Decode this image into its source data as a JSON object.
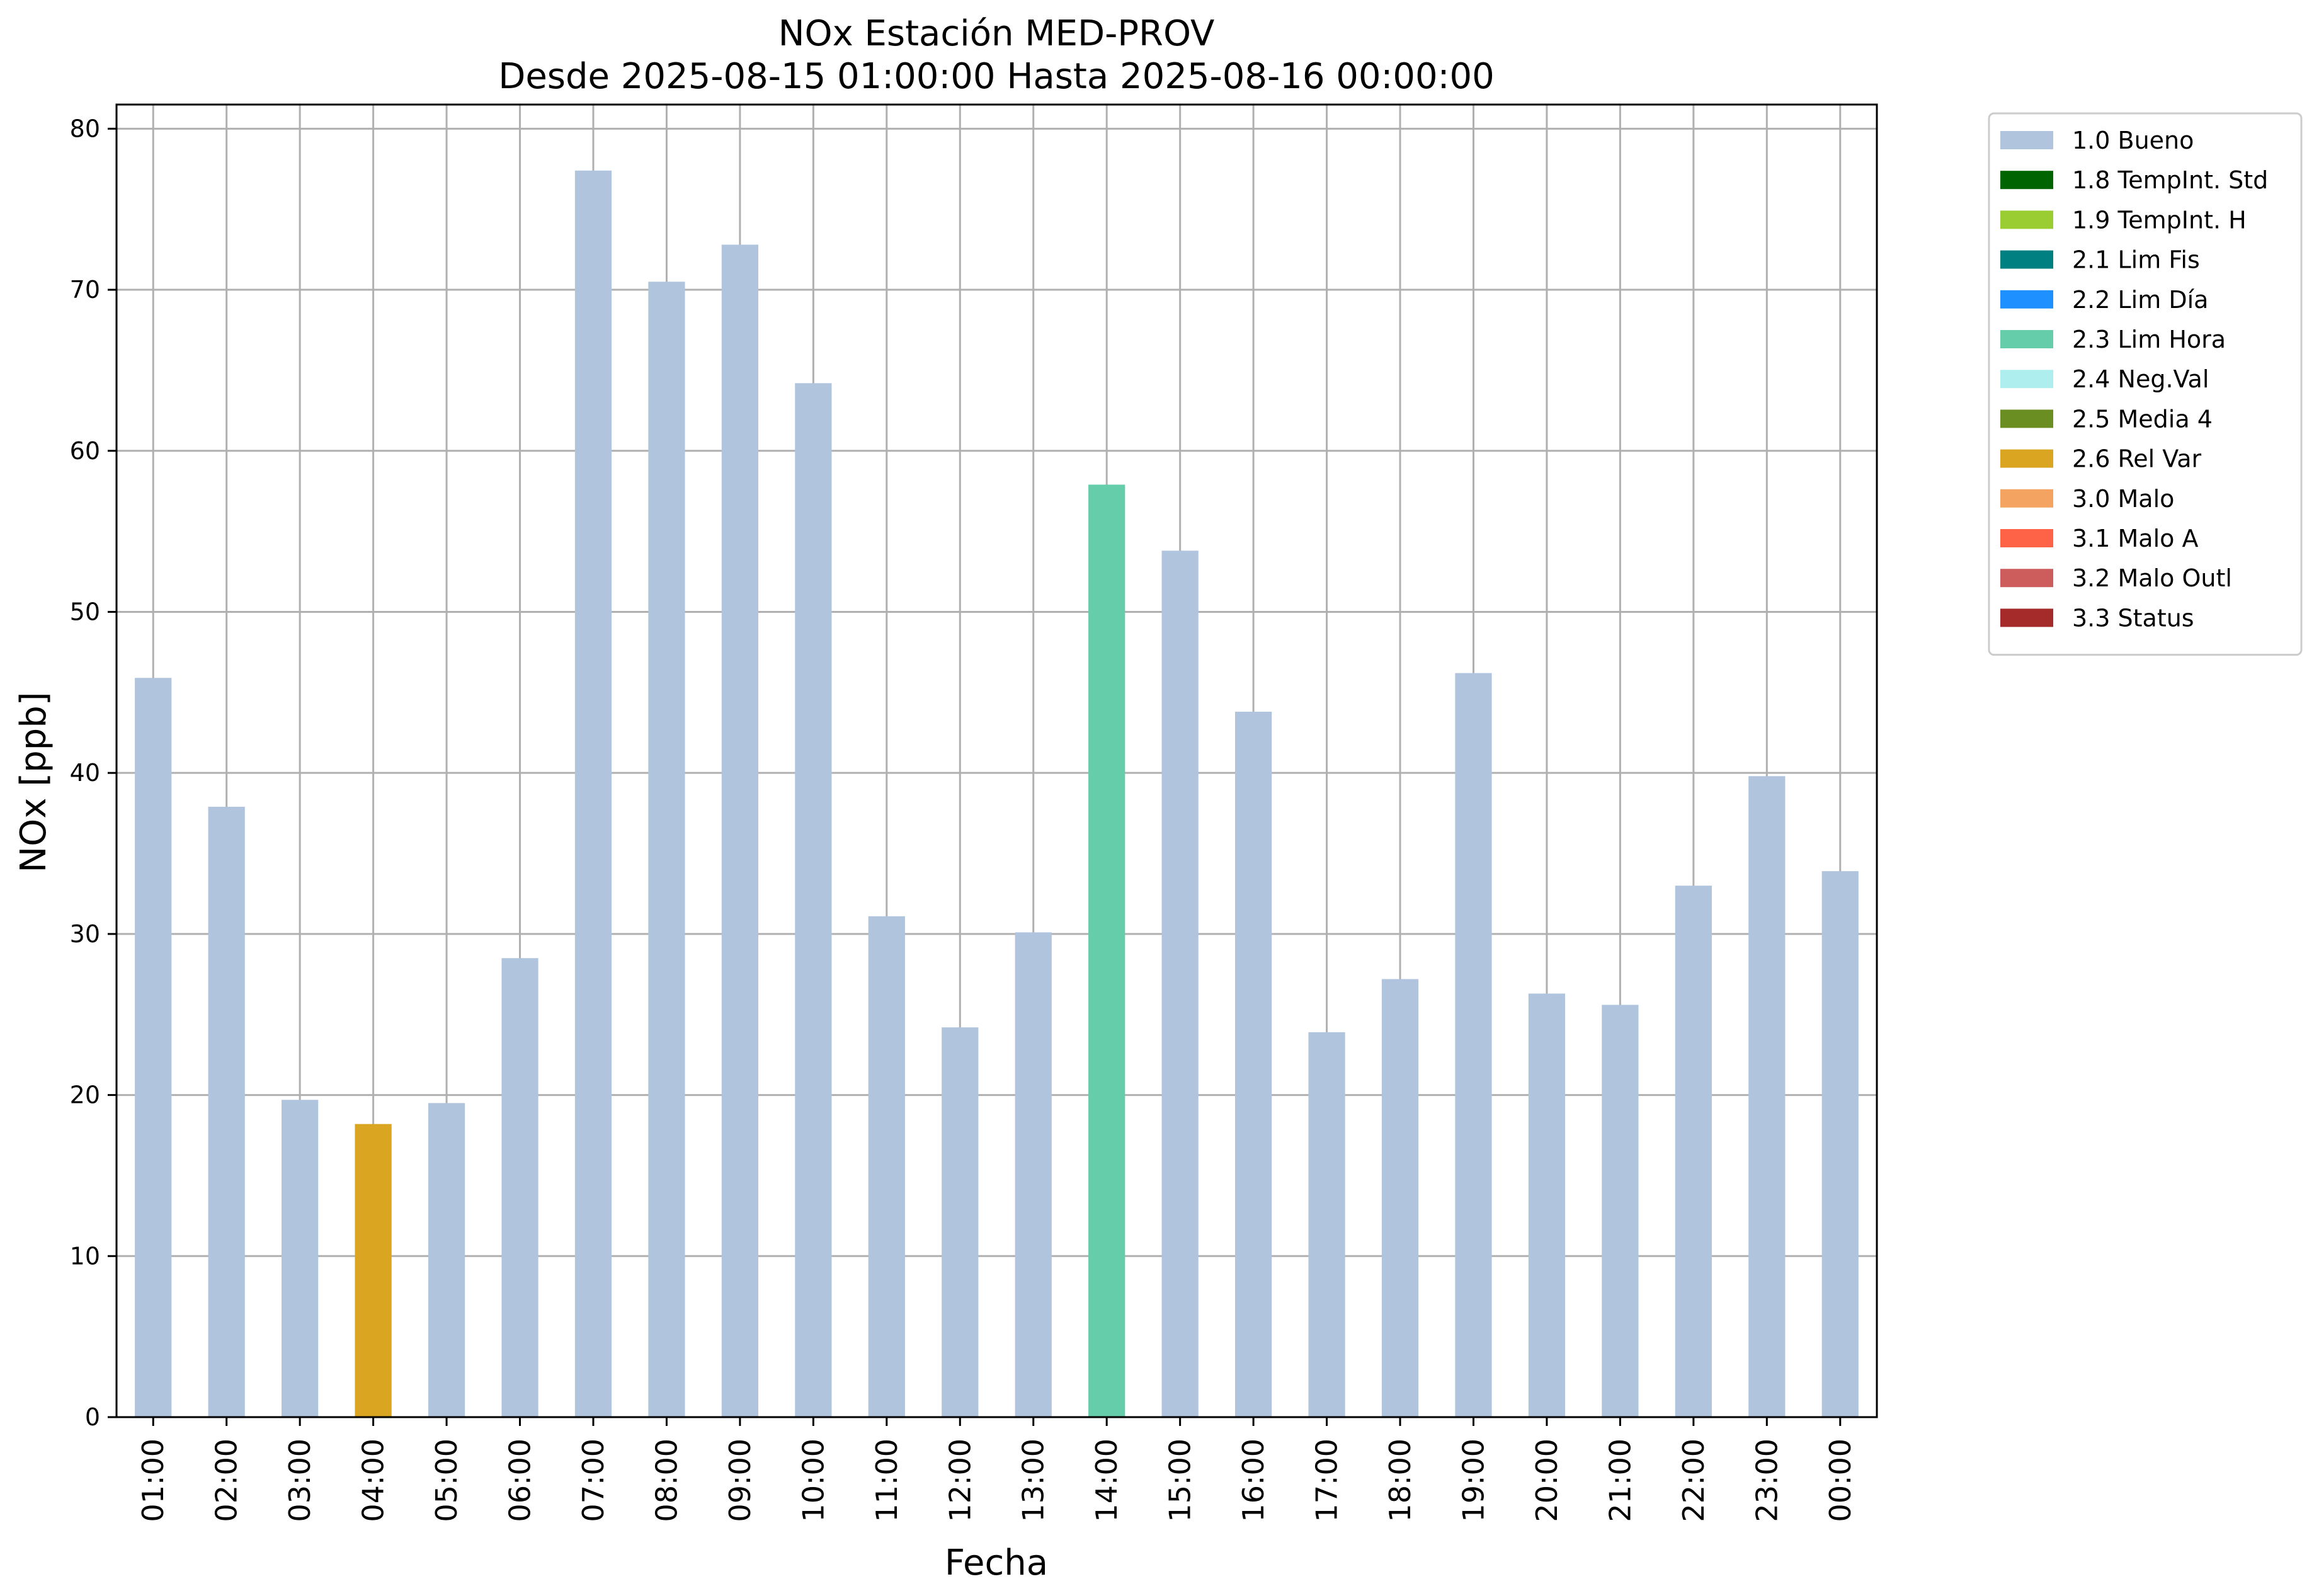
{
  "chart_data": {
    "type": "bar",
    "title": "NOx Estación MED-PROV",
    "subtitle": "Desde 2025-08-15 01:00:00 Hasta 2025-08-16 00:00:00",
    "xlabel": "Fecha",
    "ylabel": "NOx [ppb]",
    "ylim": [
      0,
      81.5
    ],
    "yticks": [
      0,
      10,
      20,
      30,
      40,
      50,
      60,
      70,
      80
    ],
    "grid": true,
    "legend_placement": "outside-top-right",
    "categories": [
      "01:00",
      "02:00",
      "03:00",
      "04:00",
      "05:00",
      "06:00",
      "07:00",
      "08:00",
      "09:00",
      "10:00",
      "11:00",
      "12:00",
      "13:00",
      "14:00",
      "15:00",
      "16:00",
      "17:00",
      "18:00",
      "19:00",
      "20:00",
      "21:00",
      "22:00",
      "23:00",
      "00:00"
    ],
    "values": [
      45.9,
      37.9,
      19.7,
      18.2,
      19.5,
      28.5,
      77.4,
      70.5,
      72.8,
      64.2,
      31.1,
      24.2,
      30.1,
      57.9,
      53.8,
      43.8,
      23.9,
      27.2,
      46.2,
      26.3,
      25.6,
      33.0,
      39.8,
      33.9
    ],
    "flags": [
      "1.0 Bueno",
      "1.0 Bueno",
      "1.0 Bueno",
      "2.6 Rel Var",
      "1.0 Bueno",
      "1.0 Bueno",
      "1.0 Bueno",
      "1.0 Bueno",
      "1.0 Bueno",
      "1.0 Bueno",
      "1.0 Bueno",
      "1.0 Bueno",
      "1.0 Bueno",
      "2.3 Lim Hora",
      "1.0 Bueno",
      "1.0 Bueno",
      "1.0 Bueno",
      "1.0 Bueno",
      "1.0 Bueno",
      "1.0 Bueno",
      "1.0 Bueno",
      "1.0 Bueno",
      "1.0 Bueno",
      "1.0 Bueno"
    ],
    "legend": [
      {
        "label": "1.0 Bueno",
        "color": "#b0c4de"
      },
      {
        "label": "1.8 TempInt. Std",
        "color": "#006400"
      },
      {
        "label": "1.9 TempInt. H",
        "color": "#9acd32"
      },
      {
        "label": "2.1 Lim Fis",
        "color": "#008080"
      },
      {
        "label": "2.2 Lim Día",
        "color": "#1e90ff"
      },
      {
        "label": "2.3 Lim Hora",
        "color": "#66cdaa"
      },
      {
        "label": "2.4 Neg.Val",
        "color": "#afeeee"
      },
      {
        "label": "2.5 Media 4",
        "color": "#6b8e23"
      },
      {
        "label": "2.6 Rel Var",
        "color": "#daa520"
      },
      {
        "label": "3.0 Malo",
        "color": "#f4a460"
      },
      {
        "label": "3.1 Malo A",
        "color": "#ff6347"
      },
      {
        "label": "3.2 Malo Outl",
        "color": "#cd5c5c"
      },
      {
        "label": "3.3 Status",
        "color": "#a52a2a"
      }
    ],
    "colors": {
      "grid": "#b0b0b0",
      "axes": "#000000"
    }
  }
}
